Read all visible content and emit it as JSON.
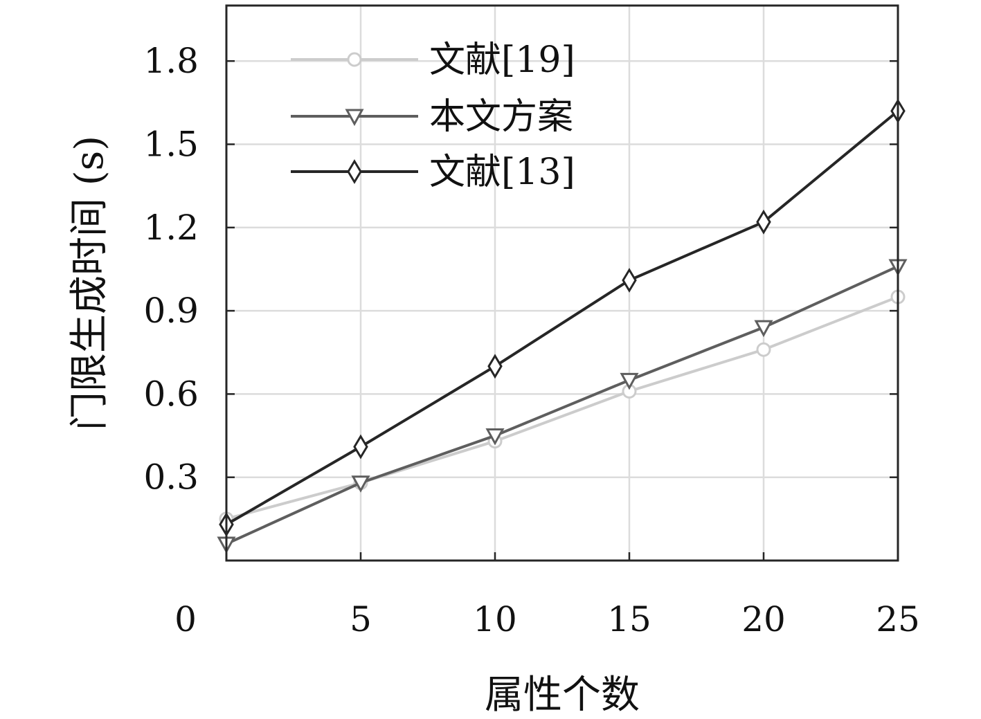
{
  "chart_data": {
    "type": "line",
    "xlabel": "属性个数",
    "ylabel": "门限生成时间 (s)",
    "xlim": [
      0,
      25
    ],
    "ylim": [
      0,
      2
    ],
    "xticks": [
      "0",
      "5",
      "10",
      "15",
      "20",
      "25"
    ],
    "yticks": [
      "0.3",
      "0.6",
      "0.9",
      "1.2",
      "1.5",
      "1.8"
    ],
    "grid": true,
    "legend_position": "top-left",
    "x": [
      0,
      5,
      10,
      15,
      20,
      25
    ],
    "series": [
      {
        "name": "文献[19]",
        "color": "#cccccc",
        "marker": "circle",
        "values": [
          0.15,
          0.28,
          0.43,
          0.61,
          0.76,
          0.95
        ]
      },
      {
        "name": "本文方案",
        "color": "#5e5e5e",
        "marker": "triangle-down",
        "values": [
          0.06,
          0.28,
          0.45,
          0.65,
          0.84,
          1.06
        ]
      },
      {
        "name": "文献[13]",
        "color": "#262626",
        "marker": "diamond",
        "values": [
          0.13,
          0.41,
          0.7,
          1.01,
          1.22,
          1.62
        ]
      }
    ]
  }
}
